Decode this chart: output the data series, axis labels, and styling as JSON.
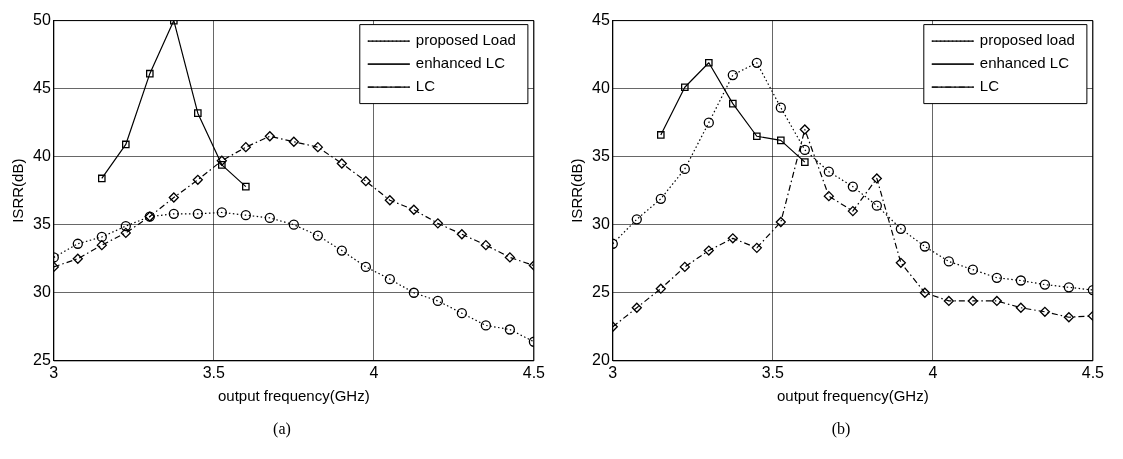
{
  "chart_data": [
    {
      "type": "line",
      "xlabel": "output frequency(GHz)",
      "ylabel": "ISRR(dB)",
      "annotations": [
        "(a)"
      ],
      "xlim": [
        3,
        4.5
      ],
      "xticks": [
        3,
        3.5,
        4,
        4.5
      ],
      "ylim": [
        25,
        50
      ],
      "yticks": [
        25,
        30,
        35,
        40,
        45,
        50
      ],
      "grid": true,
      "legend": "top right",
      "series": [
        {
          "name": "proposed Load",
          "color": "#000000",
          "marker": "circle",
          "line_style": "dotted",
          "x": [
            3,
            3.075,
            3.15,
            3.225,
            3.3,
            3.375,
            3.45,
            3.525,
            3.6,
            3.675,
            3.75,
            3.825,
            3.9,
            3.975,
            4.05,
            4.125,
            4.2,
            4.275,
            4.35,
            4.425,
            4.5
          ],
          "values": [
            32.6,
            33.6,
            34.1,
            34.9,
            35.6,
            35.8,
            35.8,
            35.9,
            35.7,
            35.5,
            35.0,
            34.2,
            33.1,
            31.9,
            31.0,
            30.0,
            29.4,
            28.5,
            27.6,
            27.3,
            26.4
          ]
        },
        {
          "name": "enhanced LC",
          "color": "#000000",
          "marker": "square",
          "line_style": "solid",
          "x": [
            3.15,
            3.225,
            3.3,
            3.375,
            3.45,
            3.525,
            3.6
          ],
          "values": [
            38.4,
            40.9,
            46.1,
            50.0,
            43.2,
            39.4,
            37.8
          ]
        },
        {
          "name": "LC",
          "color": "#000000",
          "marker": "diamond",
          "line_style": "dashed",
          "x": [
            3,
            3.075,
            3.15,
            3.225,
            3.3,
            3.375,
            3.45,
            3.525,
            3.6,
            3.675,
            3.75,
            3.825,
            3.9,
            3.975,
            4.05,
            4.125,
            4.2,
            4.275,
            4.35,
            4.425,
            4.5
          ],
          "values": [
            31.9,
            32.5,
            33.5,
            34.4,
            35.6,
            37.0,
            38.3,
            39.7,
            40.7,
            41.5,
            41.1,
            40.7,
            39.5,
            38.2,
            36.8,
            36.1,
            35.1,
            34.3,
            33.5,
            32.6,
            32.0
          ]
        }
      ]
    },
    {
      "type": "line",
      "xlabel": "output frequency(GHz)",
      "ylabel": "ISRR(dB)",
      "annotations": [
        "(b)"
      ],
      "xlim": [
        3,
        4.5
      ],
      "xticks": [
        3,
        3.5,
        4,
        4.5
      ],
      "ylim": [
        20,
        45
      ],
      "yticks": [
        20,
        25,
        30,
        35,
        40,
        45
      ],
      "grid": true,
      "legend": "top right",
      "series": [
        {
          "name": "proposed load",
          "color": "#000000",
          "marker": "circle",
          "line_style": "dotted",
          "x": [
            3,
            3.075,
            3.15,
            3.225,
            3.3,
            3.375,
            3.45,
            3.525,
            3.6,
            3.675,
            3.75,
            3.825,
            3.9,
            3.975,
            4.05,
            4.125,
            4.2,
            4.275,
            4.35,
            4.425,
            4.5
          ],
          "values": [
            28.6,
            30.4,
            31.9,
            34.1,
            37.5,
            41.0,
            41.9,
            38.6,
            35.5,
            33.9,
            32.8,
            31.4,
            29.7,
            28.4,
            27.3,
            26.7,
            26.1,
            25.9,
            25.6,
            25.4,
            25.2
          ]
        },
        {
          "name": "enhanced LC",
          "color": "#000000",
          "marker": "square",
          "line_style": "solid",
          "x": [
            3.15,
            3.225,
            3.3,
            3.375,
            3.45,
            3.525,
            3.6
          ],
          "values": [
            36.6,
            40.1,
            41.9,
            38.9,
            36.5,
            36.2,
            34.6
          ]
        },
        {
          "name": "LC",
          "color": "#000000",
          "marker": "diamond",
          "line_style": "dashed",
          "x": [
            3,
            3.075,
            3.15,
            3.225,
            3.3,
            3.375,
            3.45,
            3.525,
            3.6,
            3.675,
            3.75,
            3.825,
            3.9,
            3.975,
            4.05,
            4.125,
            4.2,
            4.275,
            4.35,
            4.425,
            4.5
          ],
          "values": [
            22.5,
            23.9,
            25.3,
            26.9,
            28.1,
            29.0,
            28.3,
            30.2,
            37.0,
            32.1,
            31.0,
            33.4,
            27.2,
            25.0,
            24.4,
            24.4,
            24.4,
            23.9,
            23.6,
            23.2,
            23.3
          ]
        }
      ]
    }
  ]
}
